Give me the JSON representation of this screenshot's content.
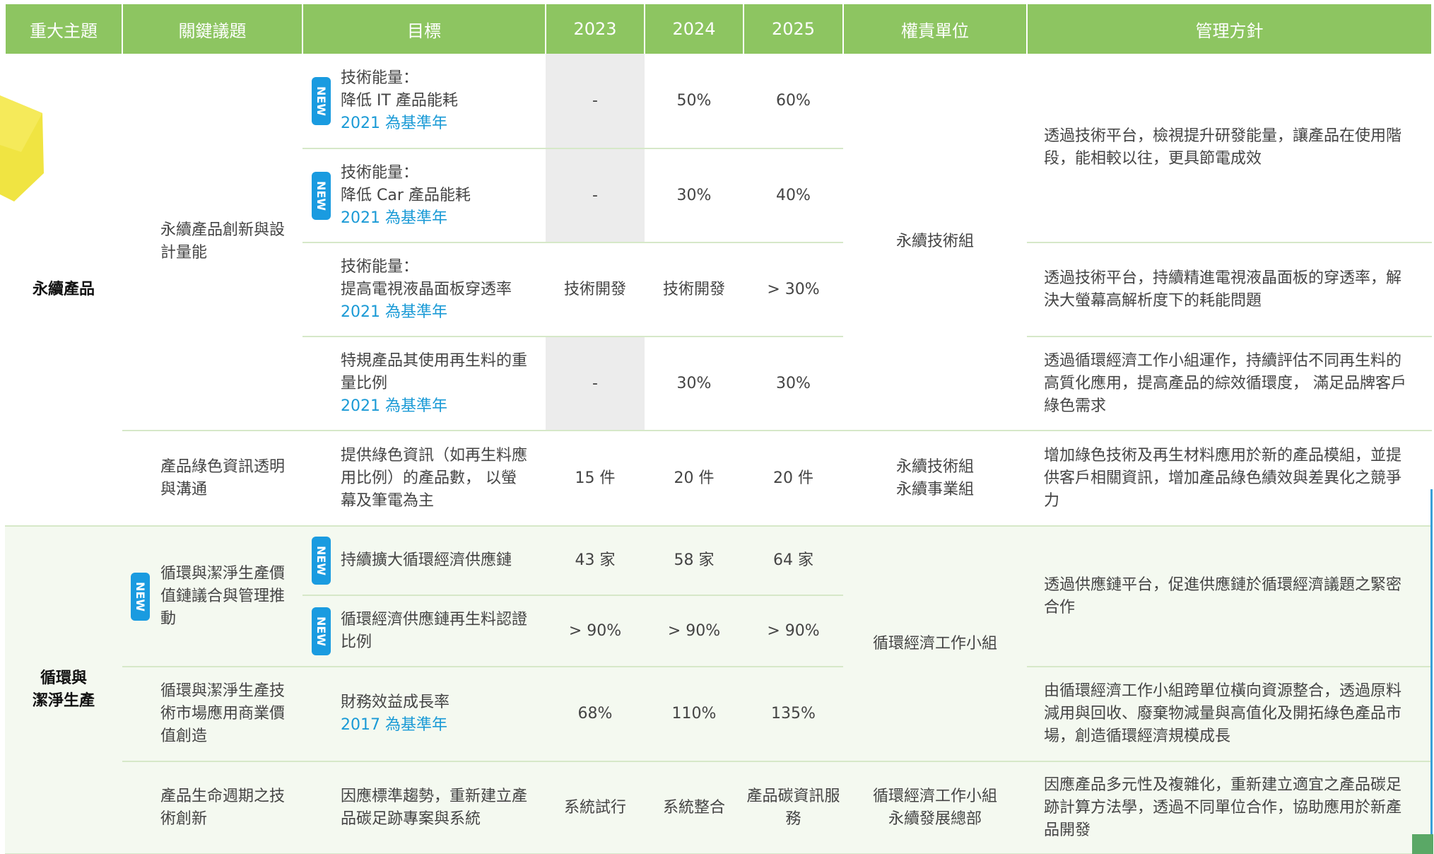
{
  "table": {
    "columns": [
      "重大主題",
      "關鍵議題",
      "目標",
      "2023",
      "2024",
      "2025",
      "權責單位",
      "管理方針"
    ],
    "topics": [
      "永續產品",
      "循環與\n潔淨生產"
    ],
    "issues": [
      {
        "text": "永續產品創新與設計量能"
      },
      {
        "text": "產品綠色資訊透明與溝通"
      },
      {
        "text": "循環與潔淨生產價值鏈議合與管理推動",
        "badge": "NEW"
      },
      {
        "text": "循環與潔淨生產技術市場應用商業價值創造"
      },
      {
        "text": "產品生命週期之技術創新"
      }
    ],
    "goals": [
      {
        "badge": "NEW",
        "text": "技術能量：\n降低 IT 產品能耗",
        "baseline": "2021 為基準年"
      },
      {
        "badge": "NEW",
        "text": "技術能量：\n降低 Car 產品能耗",
        "baseline": "2021 為基準年"
      },
      {
        "text": "技術能量：\n提高電視液晶面板穿透率",
        "baseline": "2021 為基準年"
      },
      {
        "text": "特規產品其使用再生料的重量比例",
        "baseline": "2021 為基準年"
      },
      {
        "text": "提供綠色資訊（如再生料應用比例）的產品數， 以螢幕及筆電為主"
      },
      {
        "badge": "NEW",
        "text": "持續擴大循環經濟供應鏈"
      },
      {
        "badge": "NEW",
        "text": "循環經濟供應鏈再生料認證比例"
      },
      {
        "text": "財務效益成長率",
        "baseline": "2017 為基準年"
      },
      {
        "text": "因應標準趨勢，重新建立產品碳足跡專案與系統"
      }
    ],
    "years": [
      [
        "-",
        "50%",
        "60%"
      ],
      [
        "-",
        "30%",
        "40%"
      ],
      [
        "技術開發",
        "技術開發",
        "> 30%"
      ],
      [
        "-",
        "30%",
        "30%"
      ],
      [
        "15 件",
        "20 件",
        "20 件"
      ],
      [
        "43 家",
        "58 家",
        "64 家"
      ],
      [
        "> 90%",
        "> 90%",
        "> 90%"
      ],
      [
        "68%",
        "110%",
        "135%"
      ],
      [
        "系統試行",
        "系統整合",
        "產品碳資訊服務"
      ]
    ],
    "owners": [
      "永續技術組",
      "永續技術組\n永續事業組",
      "循環經濟工作小組",
      "循環經濟工作小組\n永續發展總部"
    ],
    "policies": [
      "透過技術平台，檢視提升研發能量，讓產品在使用階段，能相較以往，更具節電成效",
      "透過技術平台，持續精進電視液晶面板的穿透率，解決大螢幕高解析度下的耗能問題",
      "透過循環經濟工作小組運作，持續評估不同再生料的高質化應用，提高產品的綜效循環度， 滿足品牌客戶綠色需求",
      "增加綠色技術及再生材料應用於新的產品模組，並提供客戶相關資訊，增加產品綠色績效與差異化之競爭力",
      "透過供應鏈平台，促進供應鏈於循環經濟議題之緊密合作",
      "由循環經濟工作小組跨單位橫向資源整合，透過原料減用與回收、廢棄物減量與高值化及開拓綠色產品市場，創造循環經濟規模成長",
      "因應產品多元性及複雜化，重新建立適宜之產品碳足跡計算方法學，透過不同單位合作，協助應用於新產品開發"
    ]
  }
}
